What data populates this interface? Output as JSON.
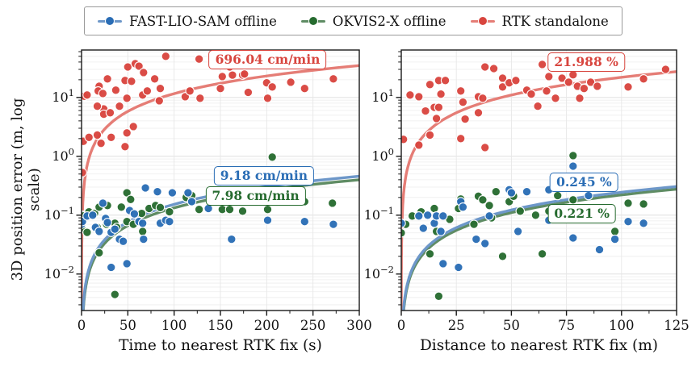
{
  "legend": {
    "items": [
      {
        "label": "FAST-LIO-SAM offline",
        "color": "#2a6db5",
        "line_color": "#6d97c9"
      },
      {
        "label": "OKVIS2-X offline",
        "color": "#266b2f",
        "line_color": "#5f8c64"
      },
      {
        "label": "RTK standalone",
        "color": "#d8453e",
        "line_color": "#e57d76"
      }
    ]
  },
  "ylabel": "3D position error (m, log scale)",
  "chart_data": [
    {
      "type": "scatter",
      "xlabel": "Time to nearest RTK fix (s)",
      "xlim": [
        0,
        300
      ],
      "x_ticks": [
        0,
        50,
        100,
        150,
        200,
        250,
        300
      ],
      "x_minor_step": 25,
      "ylim": [
        0.0024,
        64
      ],
      "y_tick_exponents": [
        1,
        0,
        -1,
        -2
      ],
      "grid": true,
      "series": [
        {
          "name": "RTK standalone",
          "color": "#d8453e",
          "line_color": "#e57d76",
          "fit_rate": 0.116007,
          "fit_label": "696.04 cm/min",
          "fit_label_x": 201,
          "fit_label_y": 44,
          "points": [
            [
              2,
              1.8
            ],
            [
              1,
              0.1
            ],
            [
              1,
              0.53
            ],
            [
              3,
              10.5
            ],
            [
              6,
              11
            ],
            [
              8,
              2.1
            ],
            [
              17,
              2.3
            ],
            [
              21,
              1.66
            ],
            [
              19,
              15.5
            ],
            [
              18,
              12.9
            ],
            [
              23,
              11.7
            ],
            [
              28,
              20.7
            ],
            [
              24,
              6.4
            ],
            [
              24,
              5.2
            ],
            [
              17,
              7.1
            ],
            [
              31,
              5.5
            ],
            [
              32,
              2.1
            ],
            [
              37,
              13.3
            ],
            [
              41,
              7.1
            ],
            [
              47,
              19.4
            ],
            [
              49,
              9.7
            ],
            [
              50,
              33
            ],
            [
              54,
              18.8
            ],
            [
              56,
              3.2
            ],
            [
              47,
              1.46
            ],
            [
              49,
              2.5
            ],
            [
              58,
              37.6
            ],
            [
              62,
              34
            ],
            [
              67,
              26.5
            ],
            [
              66,
              11
            ],
            [
              71,
              12.9
            ],
            [
              79,
              20.7
            ],
            [
              84,
              8.8
            ],
            [
              85,
              14.2
            ],
            [
              91,
              50
            ],
            [
              112,
              10.3
            ],
            [
              117,
              12.9
            ],
            [
              127,
              45
            ],
            [
              128,
              9.7
            ],
            [
              150,
              14.2
            ],
            [
              152,
              22.7
            ],
            [
              160,
              33
            ],
            [
              163,
              24
            ],
            [
              174,
              24
            ],
            [
              176,
              25
            ],
            [
              180,
              12.2
            ],
            [
              200,
              17.7
            ],
            [
              201,
              9.7
            ],
            [
              206,
              15.1
            ],
            [
              226,
              18.2
            ],
            [
              241,
              14.2
            ],
            [
              272,
              20.7
            ]
          ]
        },
        {
          "name": "OKVIS2-X offline",
          "color": "#266b2f",
          "line_color": "#5f8c64",
          "fit_rate": 0.00133,
          "fit_label": "7.98 cm/min",
          "fit_label_x": 188,
          "fit_label_y": 0.215,
          "points": [
            [
              0,
              0.06
            ],
            [
              2,
              0.097
            ],
            [
              6,
              0.051
            ],
            [
              8,
              0.114
            ],
            [
              14,
              0.107
            ],
            [
              17,
              0.062
            ],
            [
              19,
              0.137
            ],
            [
              19,
              0.023
            ],
            [
              27,
              0.07
            ],
            [
              28,
              0.146
            ],
            [
              36,
              0.073
            ],
            [
              36,
              0.0045
            ],
            [
              38,
              0.062
            ],
            [
              43,
              0.137
            ],
            [
              49,
              0.24
            ],
            [
              49,
              0.078
            ],
            [
              53,
              0.185
            ],
            [
              56,
              0.07
            ],
            [
              65,
              0.107
            ],
            [
              66,
              0.053
            ],
            [
              73,
              0.13
            ],
            [
              80,
              0.146
            ],
            [
              85,
              0.135
            ],
            [
              95,
              0.114
            ],
            [
              113,
              0.2
            ],
            [
              119,
              0.215
            ],
            [
              127,
              0.125
            ],
            [
              147,
              0.215
            ],
            [
              152,
              0.125
            ],
            [
              160,
              0.125
            ],
            [
              174,
              0.117
            ],
            [
              201,
              0.125
            ],
            [
              206,
              0.97
            ],
            [
              226,
              0.182
            ],
            [
              241,
              0.17
            ],
            [
              271,
              0.16
            ]
          ]
        },
        {
          "name": "FAST-LIO-SAM offline",
          "color": "#2a6db5",
          "line_color": "#6d97c9",
          "fit_rate": 0.00153,
          "fit_label": "9.18 cm/min",
          "fit_label_x": 197,
          "fit_label_y": 0.47,
          "points": [
            [
              0,
              0.07
            ],
            [
              1,
              0.078
            ],
            [
              6,
              0.097
            ],
            [
              12,
              0.1
            ],
            [
              15,
              0.062
            ],
            [
              19,
              0.053
            ],
            [
              23,
              0.16
            ],
            [
              26,
              0.088
            ],
            [
              28,
              0.075
            ],
            [
              32,
              0.051
            ],
            [
              32,
              0.013
            ],
            [
              36,
              0.058
            ],
            [
              41,
              0.039
            ],
            [
              45,
              0.036
            ],
            [
              49,
              0.015
            ],
            [
              52,
              0.12
            ],
            [
              57,
              0.105
            ],
            [
              62,
              0.078
            ],
            [
              66,
              0.073
            ],
            [
              67,
              0.039
            ],
            [
              69,
              0.29
            ],
            [
              82,
              0.25
            ],
            [
              85,
              0.073
            ],
            [
              91,
              0.082
            ],
            [
              95,
              0.078
            ],
            [
              98,
              0.24
            ],
            [
              115,
              0.24
            ],
            [
              119,
              0.17
            ],
            [
              137,
              0.13
            ],
            [
              147,
              0.44
            ],
            [
              162,
              0.039
            ],
            [
              201,
              0.082
            ],
            [
              241,
              0.078
            ],
            [
              272,
              0.07
            ]
          ]
        }
      ]
    },
    {
      "type": "scatter",
      "xlabel": "Distance to nearest RTK fix (m)",
      "xlim": [
        0,
        125
      ],
      "x_ticks": [
        0,
        25,
        50,
        75,
        100,
        125
      ],
      "x_minor_step": 12.5,
      "ylim": [
        0.0024,
        64
      ],
      "y_tick_exponents": [
        1,
        0,
        -1,
        -2
      ],
      "grid": true,
      "series": [
        {
          "name": "RTK standalone",
          "color": "#d8453e",
          "line_color": "#e57d76",
          "fit_rate": 0.21988,
          "fit_label": "21.988 %",
          "fit_label_x": 84,
          "fit_label_y": 40,
          "points": [
            [
              1,
              1.94
            ],
            [
              4,
              11
            ],
            [
              8,
              10.3
            ],
            [
              8,
              1.55
            ],
            [
              11,
              5.9
            ],
            [
              13,
              16.6
            ],
            [
              13,
              2.3
            ],
            [
              15,
              6.8
            ],
            [
              16,
              4.4
            ],
            [
              17,
              19.4
            ],
            [
              17,
              6.8
            ],
            [
              18,
              11.4
            ],
            [
              20,
              19.4
            ],
            [
              27,
              12.9
            ],
            [
              27,
              2.0
            ],
            [
              28,
              8.3
            ],
            [
              29,
              4.3
            ],
            [
              35,
              10.3
            ],
            [
              35,
              5.5
            ],
            [
              37,
              9.7
            ],
            [
              38,
              33
            ],
            [
              38,
              1.41
            ],
            [
              42,
              31
            ],
            [
              46,
              21.3
            ],
            [
              46,
              15.1
            ],
            [
              49,
              17.7
            ],
            [
              52,
              19.4
            ],
            [
              57,
              13.3
            ],
            [
              59,
              11.4
            ],
            [
              62,
              7.1
            ],
            [
              64,
              36.4
            ],
            [
              66,
              12.9
            ],
            [
              67,
              22.7
            ],
            [
              70,
              9.7
            ],
            [
              73,
              21.3
            ],
            [
              76,
              18.2
            ],
            [
              78,
              24.3
            ],
            [
              80,
              15.5
            ],
            [
              81,
              9.7
            ],
            [
              83,
              14.2
            ],
            [
              86,
              18.2
            ],
            [
              89,
              15.5
            ],
            [
              103,
              15.1
            ],
            [
              110,
              20.7
            ],
            [
              120,
              30
            ]
          ]
        },
        {
          "name": "OKVIS2-X offline",
          "color": "#266b2f",
          "line_color": "#5f8c64",
          "fit_rate": 0.00221,
          "fit_label": "0.221 %",
          "fit_label_x": 82,
          "fit_label_y": 0.107,
          "points": [
            [
              0,
              0.05
            ],
            [
              2,
              0.07
            ],
            [
              5,
              0.097
            ],
            [
              9,
              0.114
            ],
            [
              13,
              0.022
            ],
            [
              15,
              0.13
            ],
            [
              16,
              0.053
            ],
            [
              17,
              0.0042
            ],
            [
              22,
              0.085
            ],
            [
              26,
              0.13
            ],
            [
              27,
              0.188
            ],
            [
              33,
              0.07
            ],
            [
              35,
              0.21
            ],
            [
              37,
              0.182
            ],
            [
              40,
              0.146
            ],
            [
              41,
              0.09
            ],
            [
              43,
              0.25
            ],
            [
              46,
              0.02
            ],
            [
              49,
              0.17
            ],
            [
              51,
              0.21
            ],
            [
              54,
              0.117
            ],
            [
              61,
              0.1
            ],
            [
              64,
              0.022
            ],
            [
              67,
              0.117
            ],
            [
              71,
              0.215
            ],
            [
              78,
              1.03
            ],
            [
              78,
              0.182
            ],
            [
              97,
              0.053
            ],
            [
              103,
              0.16
            ],
            [
              110,
              0.155
            ]
          ]
        },
        {
          "name": "FAST-LIO-SAM offline",
          "color": "#2a6db5",
          "line_color": "#6d97c9",
          "fit_rate": 0.00245,
          "fit_label": "0.245 %",
          "fit_label_x": 83,
          "fit_label_y": 0.365,
          "points": [
            [
              0,
              0.073
            ],
            [
              8,
              0.097
            ],
            [
              10,
              0.06
            ],
            [
              12,
              0.1
            ],
            [
              15,
              0.073
            ],
            [
              16,
              0.097
            ],
            [
              18,
              0.053
            ],
            [
              19,
              0.097
            ],
            [
              19,
              0.015
            ],
            [
              26,
              0.013
            ],
            [
              27,
              0.17
            ],
            [
              28,
              0.137
            ],
            [
              34,
              0.039
            ],
            [
              38,
              0.033
            ],
            [
              40,
              0.097
            ],
            [
              49,
              0.27
            ],
            [
              50,
              0.24
            ],
            [
              53,
              0.053
            ],
            [
              57,
              0.25
            ],
            [
              67,
              0.27
            ],
            [
              67,
              0.082
            ],
            [
              78,
              0.68
            ],
            [
              78,
              0.041
            ],
            [
              85,
              0.215
            ],
            [
              90,
              0.026
            ],
            [
              97,
              0.039
            ],
            [
              103,
              0.078
            ],
            [
              110,
              0.073
            ]
          ]
        }
      ]
    }
  ]
}
